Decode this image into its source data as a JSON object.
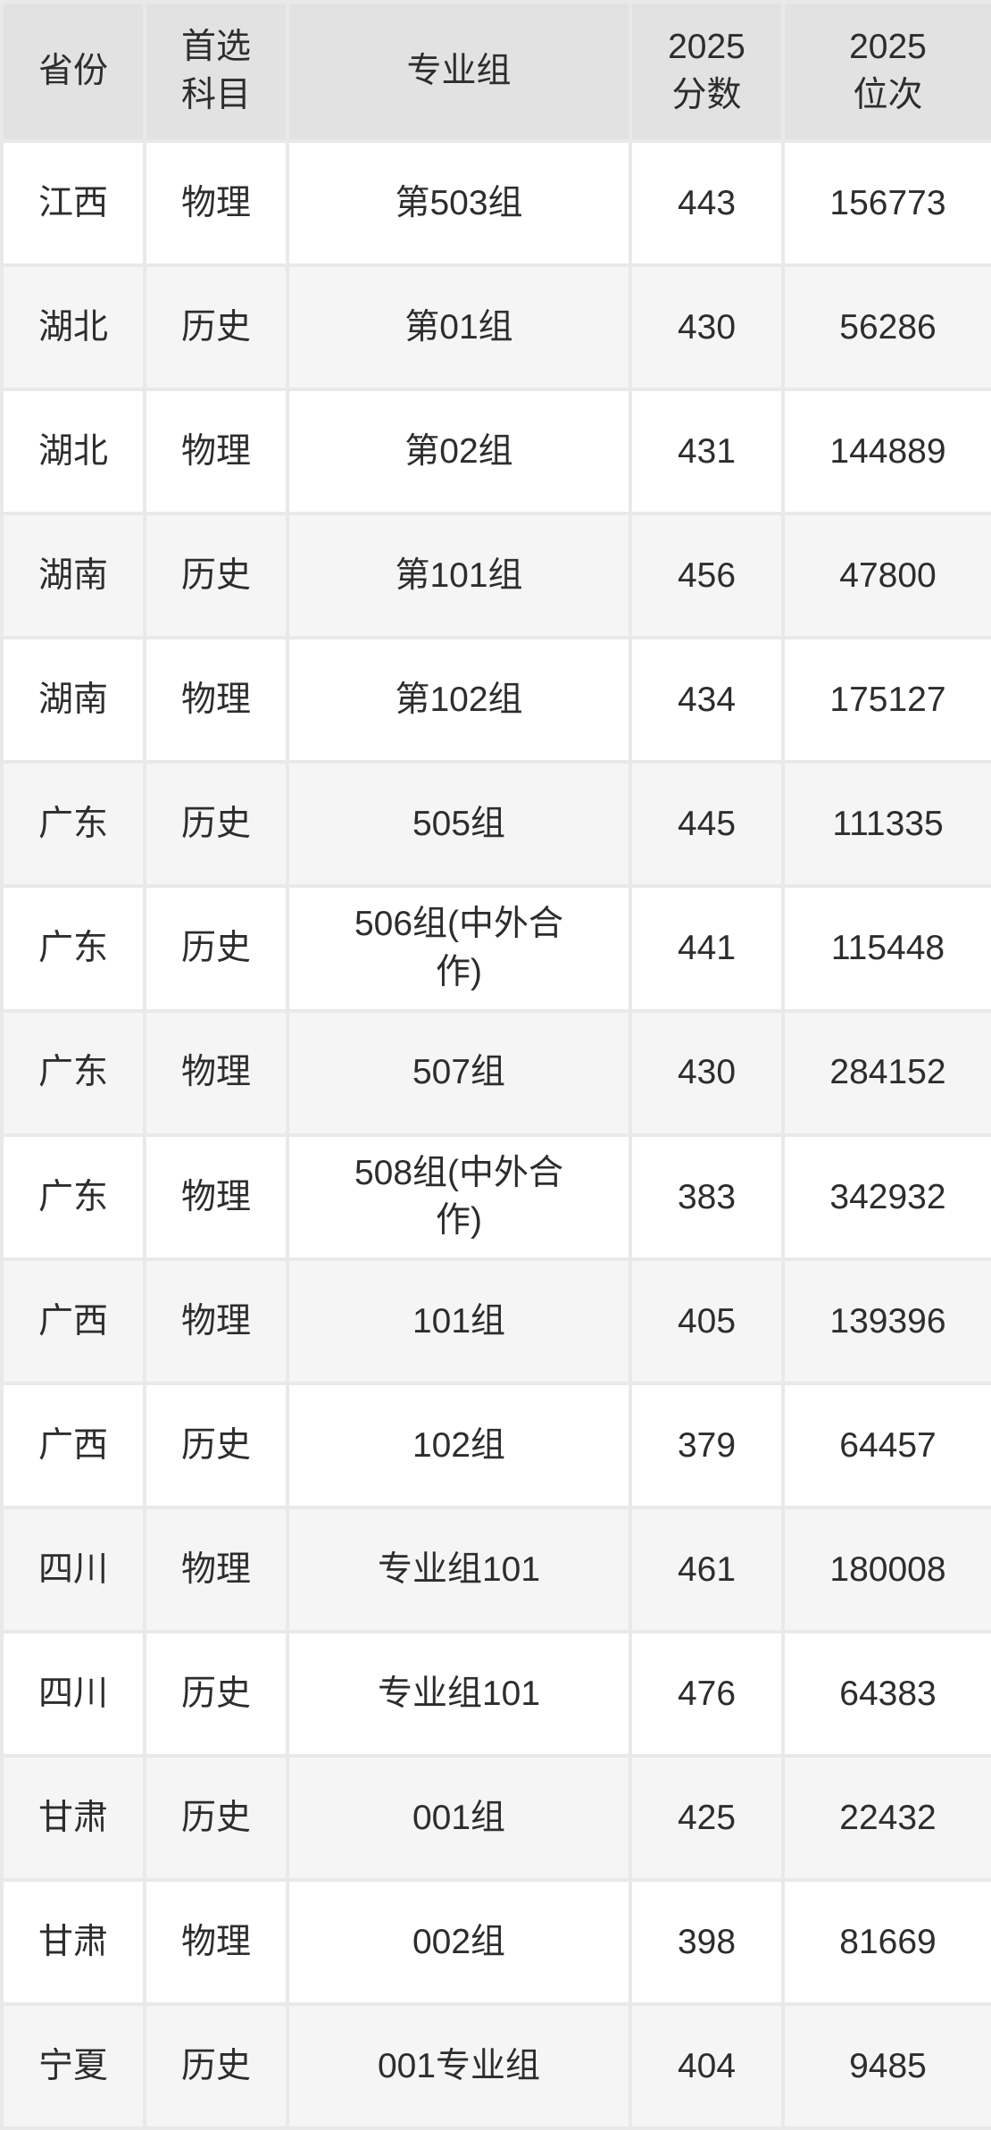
{
  "chart_data": {
    "type": "table",
    "title": "",
    "columns": [
      "省份",
      "首选\n科目",
      "专业组",
      "2025\n分数",
      "2025\n位次"
    ],
    "column_keys": [
      "province",
      "subject",
      "group",
      "score",
      "rank"
    ],
    "rows": [
      [
        "江西",
        "物理",
        "第503组",
        "443",
        "156773"
      ],
      [
        "湖北",
        "历史",
        "第01组",
        "430",
        "56286"
      ],
      [
        "湖北",
        "物理",
        "第02组",
        "431",
        "144889"
      ],
      [
        "湖南",
        "历史",
        "第101组",
        "456",
        "47800"
      ],
      [
        "湖南",
        "物理",
        "第102组",
        "434",
        "175127"
      ],
      [
        "广东",
        "历史",
        "505组",
        "445",
        "111335"
      ],
      [
        "广东",
        "历史",
        "506组(中外合作)",
        "441",
        "115448"
      ],
      [
        "广东",
        "物理",
        "507组",
        "430",
        "284152"
      ],
      [
        "广东",
        "物理",
        "508组(中外合作)",
        "383",
        "342932"
      ],
      [
        "广西",
        "物理",
        "101组",
        "405",
        "139396"
      ],
      [
        "广西",
        "历史",
        "102组",
        "379",
        "64457"
      ],
      [
        "四川",
        "物理",
        "专业组101",
        "461",
        "180008"
      ],
      [
        "四川",
        "历史",
        "专业组101",
        "476",
        "64383"
      ],
      [
        "甘肃",
        "历史",
        "001组",
        "425",
        "22432"
      ],
      [
        "甘肃",
        "物理",
        "002组",
        "398",
        "81669"
      ],
      [
        "宁夏",
        "历史",
        "001专业组",
        "404",
        "9485"
      ]
    ],
    "layout": {
      "grid": true,
      "striped": true
    }
  },
  "colors": {
    "header_bg": "#e2e2e2",
    "row_white": "#ffffff",
    "row_gray": "#f5f5f5",
    "gridline": "#e9e9e9",
    "text": "#2d2d2d"
  }
}
